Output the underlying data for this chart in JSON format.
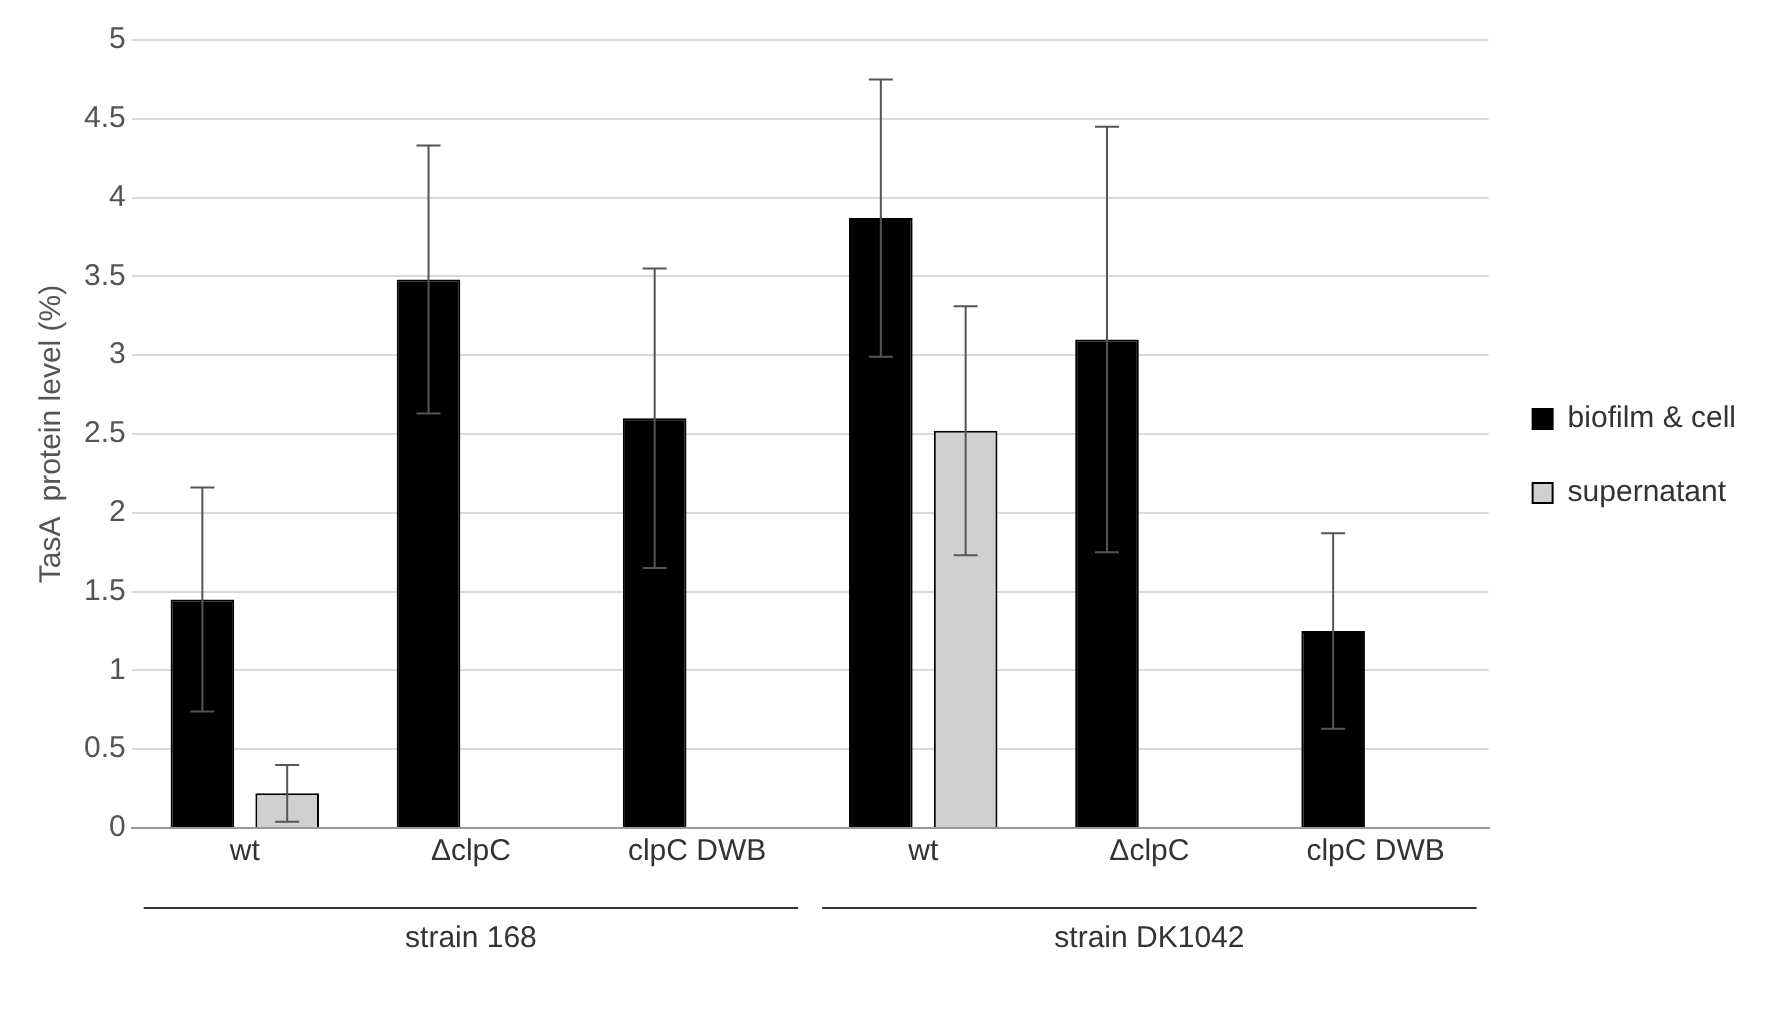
{
  "chart_data": {
    "type": "bar",
    "ylabel": "TasA  protein level (%)",
    "categories": [
      "wt",
      "ΔclpC",
      "clpC DWB",
      "wt",
      "ΔclpC",
      "clpC DWB"
    ],
    "series": [
      {
        "name": "biofilm & cell",
        "color": "#000000",
        "values": [
          1.45,
          3.48,
          2.6,
          3.87,
          3.1,
          1.25
        ],
        "errors": [
          0.71,
          0.85,
          0.95,
          0.88,
          1.35,
          0.62
        ]
      },
      {
        "name": "supernatant",
        "color": "#d0d0d0",
        "values": [
          0.22,
          null,
          null,
          2.52,
          null,
          null
        ],
        "errors": [
          0.18,
          null,
          null,
          0.79,
          null,
          null
        ]
      }
    ],
    "ylim": [
      0,
      5
    ],
    "yticks": [
      0,
      0.5,
      1,
      1.5,
      2,
      2.5,
      3,
      3.5,
      4,
      4.5,
      5
    ],
    "grid": "y",
    "legend": "right",
    "annotations": [
      "strain 168",
      "strain DK1042"
    ]
  }
}
